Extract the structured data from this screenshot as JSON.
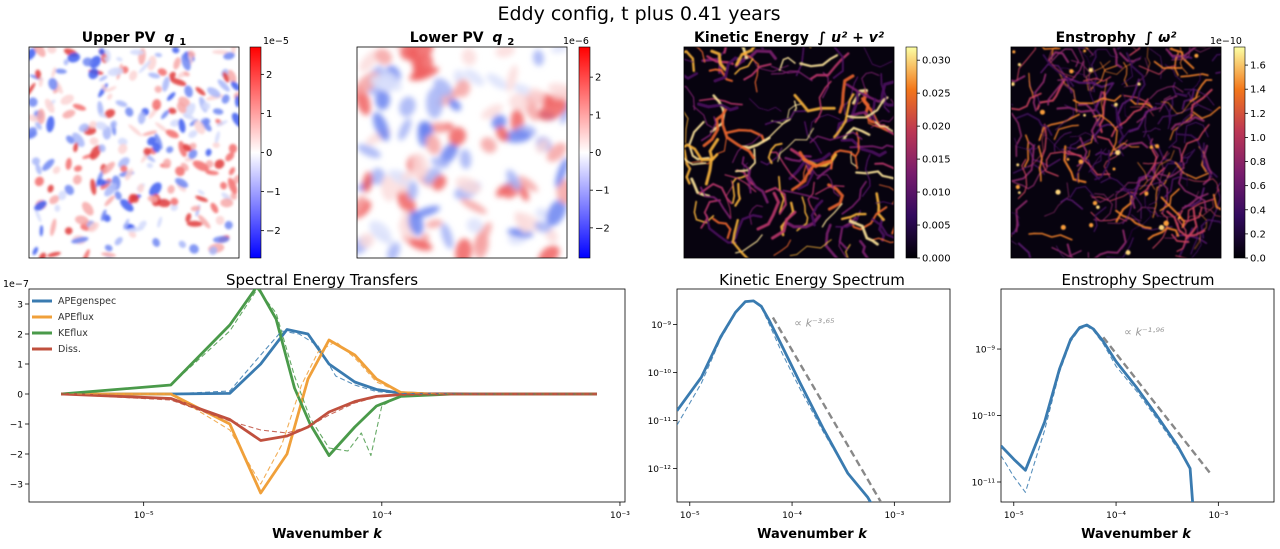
{
  "figure_title": "Eddy config, t plus 0.41 years",
  "colors": {
    "APEgenspec": "#3a7bb0",
    "APEflux": "#f0a03a",
    "KEflux": "#4a9a4a",
    "Diss": "#c0503e",
    "powerlaw": "#888888"
  },
  "chart_data": [
    {
      "type": "heatmap",
      "title": "Upper PV q1",
      "title_text": "Upper PV",
      "title_var": "q",
      "title_sub": "1",
      "colormap": "bwr",
      "colorbar_exponent": "1e−5",
      "colorbar_ticks": [
        2,
        1,
        0,
        -1,
        -2
      ],
      "colorbar_tick_labels": [
        "2",
        "1",
        "0",
        "−1",
        "−2"
      ],
      "vlim": [
        -2.7,
        2.7
      ]
    },
    {
      "type": "heatmap",
      "title": "Lower PV q2",
      "title_text": "Lower PV",
      "title_var": "q",
      "title_sub": "2",
      "colormap": "bwr",
      "colorbar_exponent": "1e−6",
      "colorbar_ticks": [
        2,
        1,
        0,
        -1,
        -2
      ],
      "colorbar_tick_labels": [
        "2",
        "1",
        "0",
        "−1",
        "−2"
      ],
      "vlim": [
        -2.8,
        2.8
      ]
    },
    {
      "type": "heatmap",
      "title": "Kinetic Energy ∫u² + v²",
      "title_text": "Kinetic Energy",
      "title_math": "u² + v²",
      "colormap": "inferno",
      "colorbar_exponent": "",
      "colorbar_ticks": [
        0.03,
        0.025,
        0.02,
        0.015,
        0.01,
        0.005,
        0.0
      ],
      "colorbar_tick_labels": [
        "0.030",
        "0.025",
        "0.020",
        "0.015",
        "0.010",
        "0.005",
        "0.000"
      ],
      "vlim": [
        0,
        0.032
      ]
    },
    {
      "type": "heatmap",
      "title": "Enstrophy ∫ω²",
      "title_text": "Enstrophy",
      "title_math": "ω²",
      "colormap": "inferno",
      "colorbar_exponent": "1e−10",
      "colorbar_ticks": [
        1.6,
        1.4,
        1.2,
        1.0,
        0.8,
        0.6,
        0.4,
        0.2,
        0.0
      ],
      "colorbar_tick_labels": [
        "1.6",
        "1.4",
        "1.2",
        "1.0",
        "0.8",
        "0.6",
        "0.4",
        "0.2",
        "0.0"
      ],
      "vlim": [
        0,
        1.75
      ]
    },
    {
      "type": "line",
      "title": "Spectral Energy Transfers",
      "xlabel": "Wavenumber k",
      "xlabel_text": "Wavenumber",
      "xlabel_var": "k",
      "xscale": "log",
      "xlim": [
        3.3e-06,
        0.00105
      ],
      "ylim": [
        -3.6,
        3.5
      ],
      "y_exponent": "1e−7",
      "yticks": [
        3,
        2,
        1,
        0,
        -1,
        -2,
        -3
      ],
      "ytick_labels": [
        "3",
        "2",
        "1",
        "0",
        "−1",
        "−2",
        "−3"
      ],
      "xticks": [
        1e-05,
        0.0001,
        0.001
      ],
      "xtick_labels": [
        "10⁻⁵",
        "10⁻⁴",
        "10⁻³"
      ],
      "legend_position": "top-left",
      "legend": [
        "APEgenspec",
        "APEflux",
        "KEflux",
        "Diss."
      ],
      "series": [
        {
          "name": "APEgenspec",
          "style": "solid",
          "x": [
            4.5e-06,
            1.3e-05,
            2.3e-05,
            3.1e-05,
            4e-05,
            4.9e-05,
            6e-05,
            7.7e-05,
            9.5e-05,
            0.000115,
            0.00015,
            0.0003,
            0.0008
          ],
          "y": [
            0,
            0,
            0.02,
            1.0,
            2.15,
            2.0,
            1.0,
            0.4,
            0.15,
            0.05,
            0.01,
            0,
            0
          ]
        },
        {
          "name": "APEflux",
          "style": "solid",
          "x": [
            4.5e-06,
            1.3e-05,
            2.3e-05,
            3.1e-05,
            4e-05,
            4.9e-05,
            6e-05,
            7.7e-05,
            9.5e-05,
            0.00012,
            0.00016,
            0.0003,
            0.0008
          ],
          "y": [
            0,
            0,
            -1.0,
            -3.3,
            -2.0,
            0.5,
            1.8,
            1.3,
            0.5,
            0.05,
            0,
            0,
            0
          ]
        },
        {
          "name": "KEflux",
          "style": "solid",
          "x": [
            4.5e-06,
            1.3e-05,
            2.3e-05,
            3e-05,
            3.6e-05,
            4.3e-05,
            5e-05,
            6e-05,
            7.7e-05,
            9.5e-05,
            0.00012,
            0.0002,
            0.0008
          ],
          "y": [
            0,
            0.3,
            2.3,
            3.6,
            2.5,
            0.2,
            -1.0,
            -2.05,
            -1.1,
            -0.4,
            -0.08,
            0,
            0
          ]
        },
        {
          "name": "Diss.",
          "style": "solid",
          "x": [
            4.5e-06,
            1.3e-05,
            2.3e-05,
            3.1e-05,
            4e-05,
            4.9e-05,
            6e-05,
            7.7e-05,
            9.5e-05,
            0.00012,
            0.00016,
            0.0003,
            0.0008
          ],
          "y": [
            0,
            -0.15,
            -0.85,
            -1.55,
            -1.4,
            -1.1,
            -0.6,
            -0.25,
            -0.08,
            -0.02,
            0,
            0,
            0
          ]
        },
        {
          "name": "APEgenspec (instantaneous)",
          "style": "dashed",
          "x": [
            4.5e-06,
            1.3e-05,
            2.3e-05,
            3.1e-05,
            3.8e-05,
            4.5e-05,
            5.4e-05,
            6.4e-05,
            7.7e-05,
            9.5e-05,
            0.00012,
            0.0003,
            0.0008
          ],
          "y": [
            0,
            0,
            0.1,
            1.3,
            2.1,
            2.0,
            1.6,
            0.6,
            0.3,
            0.08,
            0.02,
            0,
            0
          ]
        },
        {
          "name": "APEflux (instantaneous)",
          "style": "dashed",
          "x": [
            4.5e-06,
            1.3e-05,
            2.3e-05,
            3.1e-05,
            3.8e-05,
            4.6e-05,
            5.4e-05,
            6.4e-05,
            7.7e-05,
            9.5e-05,
            0.00012,
            0.0002,
            0.0008
          ],
          "y": [
            0,
            0,
            -1.2,
            -3.0,
            -1.7,
            0.3,
            1.4,
            1.75,
            1.2,
            0.4,
            0.05,
            0,
            0
          ]
        },
        {
          "name": "KEflux (instantaneous)",
          "style": "dashed",
          "x": [
            4.5e-06,
            1.3e-05,
            2.3e-05,
            3e-05,
            3.6e-05,
            4.3e-05,
            5e-05,
            6e-05,
            7.2e-05,
            8.2e-05,
            9e-05,
            0.0001,
            0.00012,
            0.0002,
            0.0008
          ],
          "y": [
            0,
            0.3,
            2.1,
            3.5,
            2.7,
            0.6,
            -0.8,
            -1.8,
            -1.9,
            -1.3,
            -2.05,
            -0.4,
            -0.05,
            0,
            0
          ]
        },
        {
          "name": "Diss. (instantaneous)",
          "style": "dashed",
          "x": [
            4.5e-06,
            1.3e-05,
            2.3e-05,
            3.1e-05,
            4e-05,
            4.9e-05,
            6e-05,
            7.7e-05,
            9.5e-05,
            0.00012,
            0.00016,
            0.0003,
            0.0008
          ],
          "y": [
            0,
            -0.2,
            -0.9,
            -1.2,
            -1.3,
            -1.1,
            -0.7,
            -0.3,
            -0.1,
            -0.03,
            0,
            0,
            0
          ]
        }
      ]
    },
    {
      "type": "line",
      "title": "Kinetic Energy Spectrum",
      "xlabel": "Wavenumber k",
      "xlabel_text": "Wavenumber",
      "xlabel_var": "k",
      "xscale": "log",
      "yscale": "log",
      "xlim": [
        7.5e-06,
        0.0035
      ],
      "ylim": [
        2e-13,
        5.5e-09
      ],
      "xticks": [
        1e-05,
        0.0001,
        0.001
      ],
      "xtick_labels": [
        "10⁻⁵",
        "10⁻⁴",
        "10⁻³"
      ],
      "yticks": [
        1e-09,
        1e-10,
        1e-11,
        1e-12
      ],
      "ytick_labels": [
        "10⁻⁹",
        "10⁻¹⁰",
        "10⁻¹¹",
        "10⁻¹²"
      ],
      "annotation": "∝ k⁻³·⁶⁵",
      "annotation_xy": [
        0.000105,
        9e-10
      ],
      "series": [
        {
          "name": "KE spectrum",
          "style": "solid",
          "x": [
            7.5e-06,
            1.3e-05,
            2e-05,
            2.8e-05,
            3.5e-05,
            4.2e-05,
            5e-05,
            6e-05,
            8e-05,
            0.00012,
            0.0002,
            0.00035,
            0.00055,
            0.0006
          ],
          "y": [
            1.6e-11,
            8e-11,
            5.5e-10,
            1.8e-09,
            3e-09,
            3.1e-09,
            2.4e-09,
            1.2e-09,
            3.5e-10,
            6e-11,
            7e-12,
            8e-13,
            2.5e-13,
            1.8e-13
          ]
        },
        {
          "name": "KE spectrum (instantaneous)",
          "style": "dashed",
          "x": [
            7.5e-06,
            1.3e-05,
            2e-05,
            2.8e-05,
            3.5e-05,
            4.2e-05,
            5e-05,
            6e-05,
            8e-05,
            0.00012,
            0.0002,
            0.00035,
            0.00055
          ],
          "y": [
            8e-12,
            6e-11,
            5e-10,
            1.7e-09,
            3e-09,
            3.1e-09,
            2.3e-09,
            1e-09,
            2.5e-10,
            4.5e-11,
            6e-12,
            8e-13,
            2.5e-13
          ]
        },
        {
          "name": "power law",
          "style": "dashed",
          "x": [
            6.5e-05,
            0.00085
          ],
          "y": [
            1.4e-09,
            1.2e-13
          ]
        }
      ]
    },
    {
      "type": "line",
      "title": "Enstrophy Spectrum",
      "xlabel": "Wavenumber k",
      "xlabel_text": "Wavenumber",
      "xlabel_var": "k",
      "xscale": "log",
      "yscale": "log",
      "xlim": [
        7.5e-06,
        0.0035
      ],
      "ylim": [
        5e-12,
        8e-09
      ],
      "xticks": [
        1e-05,
        0.0001,
        0.001
      ],
      "xtick_labels": [
        "10⁻⁵",
        "10⁻⁴",
        "10⁻³"
      ],
      "yticks": [
        1e-09,
        1e-10,
        1e-11
      ],
      "ytick_labels": [
        "10⁻⁹",
        "10⁻¹⁰",
        "10⁻¹¹"
      ],
      "annotation": "∝ k⁻¹·⁹⁶",
      "annotation_xy": [
        0.00012,
        1.6e-09
      ],
      "series": [
        {
          "name": "Enstrophy spectrum",
          "style": "solid",
          "x": [
            7.5e-06,
            1e-05,
            1.3e-05,
            2e-05,
            2.8e-05,
            3.6e-05,
            4.4e-05,
            5.2e-05,
            6e-05,
            7.5e-05,
            0.0001,
            0.00016,
            0.00025,
            0.0004,
            0.00053,
            0.00056
          ],
          "y": [
            3.5e-11,
            2.2e-11,
            1.5e-11,
            8e-11,
            5e-10,
            1.4e-09,
            2.1e-09,
            2.3e-09,
            2e-09,
            1.3e-09,
            6.5e-10,
            2.6e-10,
            1e-10,
            3.5e-11,
            1.6e-11,
            5e-12
          ]
        },
        {
          "name": "Enstrophy spectrum (instantaneous)",
          "style": "dashed",
          "x": [
            7.5e-06,
            1e-05,
            1.3e-05,
            2e-05,
            2.8e-05,
            3.6e-05,
            4.4e-05,
            5.2e-05,
            6e-05,
            7.5e-05,
            0.0001,
            0.00016,
            0.00025,
            0.0004
          ],
          "y": [
            2.5e-11,
            1.2e-11,
            7e-12,
            6e-11,
            4.5e-10,
            1.3e-09,
            2e-09,
            2.2e-09,
            1.9e-09,
            1.2e-09,
            5.5e-10,
            2.3e-10,
            9e-11,
            3.2e-11
          ]
        },
        {
          "name": "power law",
          "style": "dashed",
          "x": [
            7.5e-05,
            0.00085
          ],
          "y": [
            1.5e-09,
            1.3e-11
          ]
        }
      ]
    }
  ]
}
